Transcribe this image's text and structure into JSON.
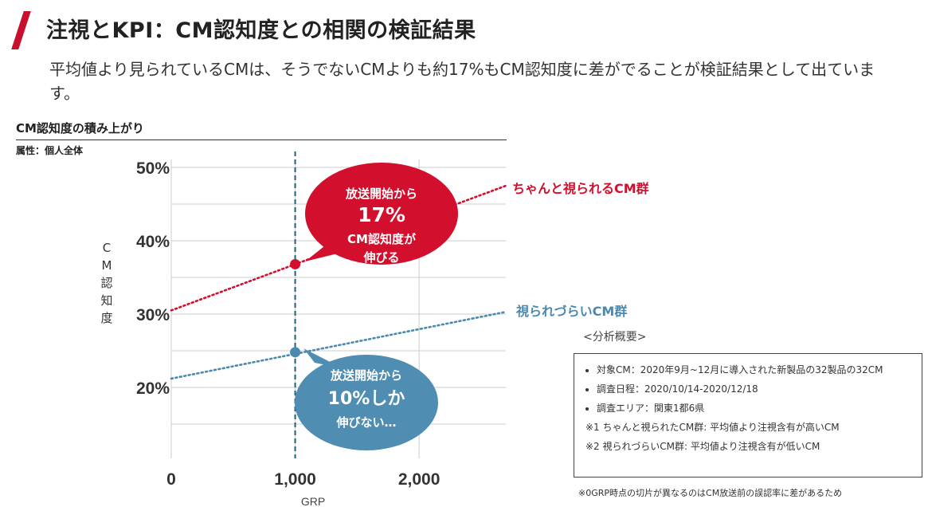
{
  "header": {
    "title": "注視とKPI：CM認知度との相関の検証結果",
    "subtitle": "平均値より見られているCMは、そうでないCMよりも約17%もCM認知度に差がでることが検証結果として出ています。"
  },
  "chart_heading": "CM認知度の積み上がり",
  "attribute_label": "属性：個人全体",
  "chart_data": {
    "type": "line",
    "title": "CM認知度の積み上がり",
    "xlabel": "GRP",
    "ylabel": "CM認知度",
    "xlim": [
      0,
      2700
    ],
    "ylim": [
      10,
      50
    ],
    "x_ticks": [
      0,
      1000,
      2000
    ],
    "x_tick_labels": [
      "0",
      "1,000",
      "2,000"
    ],
    "y_ticks": [
      20,
      30,
      40,
      50
    ],
    "y_tick_labels": [
      "20%",
      "30%",
      "40%",
      "50%"
    ],
    "grid": true,
    "reference_line_x": 1000,
    "series": [
      {
        "name": "ちゃんと視られるCM群",
        "color": "#d2102e",
        "x": [
          0,
          2700
        ],
        "y": [
          30.5,
          47.5
        ],
        "marker": {
          "x": 1000,
          "y": 36.8
        }
      },
      {
        "name": "視られづらいCM群",
        "color": "#4a8ab0",
        "x": [
          0,
          2700
        ],
        "y": [
          21.2,
          30.3
        ],
        "marker": {
          "x": 1000,
          "y": 24.8
        }
      }
    ],
    "callouts": [
      {
        "lines": [
          "放送開始から",
          "17%",
          "CM認知度が",
          "伸びる"
        ],
        "color": "#d2102e"
      },
      {
        "lines": [
          "放送開始から",
          "10%しか",
          "伸びない…"
        ],
        "color": "#4f8db2"
      }
    ]
  },
  "ylabel_chars": [
    "C",
    "M",
    "認",
    "知",
    "度"
  ],
  "summary": {
    "title": "<分析概要>",
    "items": [
      "対象CM：2020年9月~12月に導入された新製品の32製品の32CM",
      "調査日程：2020/10/14-2020/12/18",
      "調査エリア：関東1都6県"
    ],
    "notes": [
      "※1 ちゃんと視られたCM群: 平均値より注視含有が高いCM",
      "※2 視られづらいCM群: 平均値より注視含有が低いCM"
    ]
  },
  "footnote": "※0GRP時点の切片が異なるのはCM放送前の誤認率に差があるため",
  "colors": {
    "accent": "#c8102e",
    "high": "#d2102e",
    "low": "#4a8ab0",
    "grid": "#cccccc",
    "refline": "#1f5f80"
  }
}
